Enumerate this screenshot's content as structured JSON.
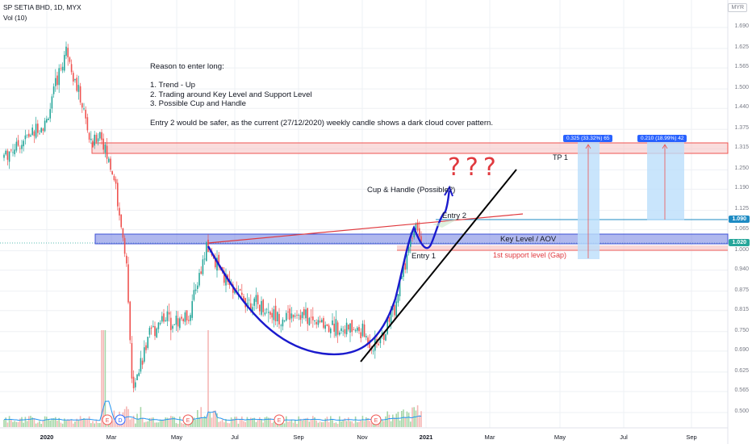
{
  "header": {
    "symbol_line": "SP SETIA BHD, 1D, MYX",
    "volume_line": "Vol (10)",
    "currency": "MYR"
  },
  "note": {
    "title": "Reason to enter long:",
    "points": [
      "1. Trend - Up",
      "2. Trading around Key Level and Support Level",
      "3. Possible Cup and Handle"
    ],
    "footer": "Entry 2 would be safer, as the current (27/12/2020) weekly candle shows a dark cloud cover pattern."
  },
  "annotations": {
    "cup_handle": "Cup & Handle (Possible?)",
    "question_marks": "???",
    "entry1": "Entry 1",
    "entry2": "Entry 2",
    "key_level": "Key Level / AOV",
    "support": "1st support level (Gap)",
    "tp1": "TP 1",
    "measure1": "0.325 (33.32%) 65",
    "measure2": "0.210 (18.99%) 42"
  },
  "price_tags": {
    "tag1": "1.090",
    "tag2": "1.020"
  },
  "events": [
    "E",
    "D",
    "E",
    "E",
    "E"
  ],
  "colors": {
    "up": "#26a69a",
    "down": "#ef5350",
    "cup": "#1a1acd",
    "key_zone": "#3d4fd6",
    "resistance_zone": "#ef5350",
    "measure": "#2962ff",
    "trendline": "#000000"
  },
  "chart_data": {
    "type": "candlestick",
    "y_ticks": [
      "1.690",
      "1.625",
      "1.565",
      "1.500",
      "1.440",
      "1.375",
      "1.315",
      "1.250",
      "1.190",
      "1.125",
      "1.065",
      "1.000",
      "0.940",
      "0.875",
      "0.815",
      "0.750",
      "0.690",
      "0.625",
      "0.565",
      "0.500"
    ],
    "x_ticks": [
      "2020",
      "Mar",
      "May",
      "Jul",
      "Sep",
      "Nov",
      "2021",
      "Mar",
      "May",
      "Jul",
      "Sep"
    ],
    "ylim": [
      0.49,
      1.73
    ],
    "series": [
      {
        "name": "price",
        "points": [
          [
            "2020-01-01",
            1.4
          ],
          [
            "2020-01-10",
            1.52
          ],
          [
            "2020-01-20",
            1.63
          ],
          [
            "2020-01-28",
            1.52
          ],
          [
            "2020-02-05",
            1.43
          ],
          [
            "2020-02-12",
            1.32
          ],
          [
            "2020-02-20",
            1.37
          ],
          [
            "2020-02-26",
            1.3
          ],
          [
            "2020-03-05",
            1.22
          ],
          [
            "2020-03-12",
            1.06
          ],
          [
            "2020-03-17",
            0.92
          ],
          [
            "2020-03-22",
            0.58
          ],
          [
            "2020-03-30",
            0.66
          ],
          [
            "2020-04-08",
            0.74
          ],
          [
            "2020-04-20",
            0.8
          ],
          [
            "2020-05-01",
            0.78
          ],
          [
            "2020-05-15",
            0.8
          ],
          [
            "2020-05-25",
            0.93
          ],
          [
            "2020-06-01",
            1.01
          ],
          [
            "2020-06-15",
            0.92
          ],
          [
            "2020-07-01",
            0.86
          ],
          [
            "2020-07-20",
            0.83
          ],
          [
            "2020-08-10",
            0.79
          ],
          [
            "2020-08-25",
            0.81
          ],
          [
            "2020-09-10",
            0.78
          ],
          [
            "2020-09-25",
            0.77
          ],
          [
            "2020-10-10",
            0.76
          ],
          [
            "2020-10-25",
            0.75
          ],
          [
            "2020-11-05",
            0.7
          ],
          [
            "2020-11-15",
            0.74
          ],
          [
            "2020-11-25",
            0.82
          ],
          [
            "2020-12-05",
            0.96
          ],
          [
            "2020-12-15",
            1.09
          ],
          [
            "2020-12-24",
            1.02
          ]
        ]
      }
    ],
    "levels": {
      "resistance_zone": [
        1.3,
        1.325
      ],
      "key_zone": [
        1.02,
        1.05
      ],
      "support_gap": 0.99,
      "tag_1_090": 1.09,
      "tag_1_020": 1.02
    }
  }
}
